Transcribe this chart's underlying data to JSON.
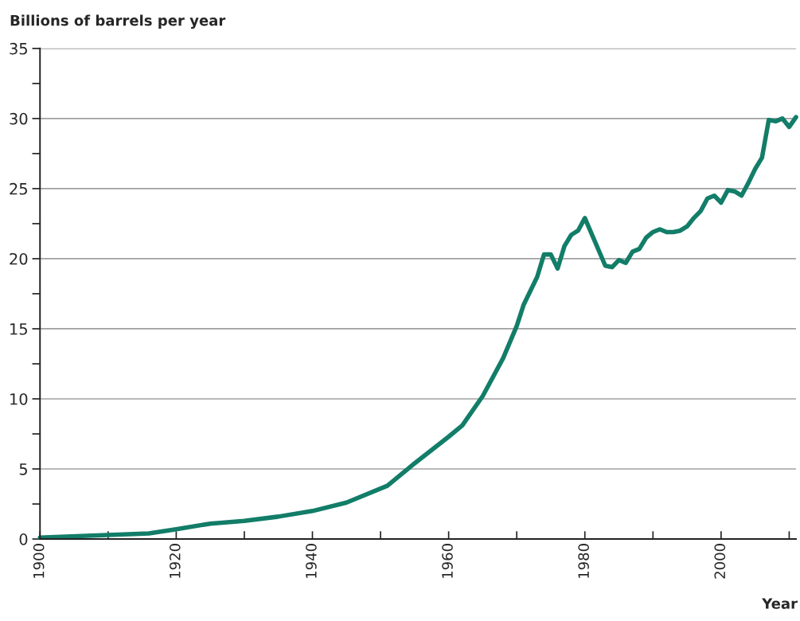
{
  "chart_data": {
    "type": "line",
    "ylabel": "Billions of barrels per year",
    "xlabel": "Year",
    "x": [
      1900,
      1916,
      1920,
      1925,
      1930,
      1935,
      1940,
      1945,
      1951,
      1955,
      1960,
      1962,
      1965,
      1968,
      1970,
      1971,
      1973,
      1974,
      1975,
      1976,
      1977,
      1978,
      1979,
      1980,
      1983,
      1984,
      1985,
      1986,
      1987,
      1988,
      1989,
      1990,
      1991,
      1992,
      1993,
      1994,
      1995,
      1996,
      1997,
      1998,
      1999,
      2000,
      2001,
      2002,
      2003,
      2004,
      2005,
      2006,
      2007,
      2008,
      2009,
      2010,
      2011
    ],
    "series": [
      {
        "color": "#127d68",
        "values": [
          0.1,
          0.4,
          0.7,
          1.1,
          1.3,
          1.6,
          2.0,
          2.6,
          3.8,
          5.4,
          7.3,
          8.1,
          10.2,
          12.9,
          15.2,
          16.7,
          18.7,
          20.3,
          20.3,
          19.3,
          20.9,
          21.7,
          22.0,
          22.9,
          19.5,
          19.4,
          19.9,
          19.7,
          20.5,
          20.7,
          21.5,
          21.9,
          22.1,
          21.9,
          21.9,
          22.0,
          22.3,
          22.9,
          23.4,
          24.3,
          24.5,
          24.0,
          24.9,
          24.8,
          24.5,
          25.4,
          26.4,
          27.2,
          29.9,
          29.8,
          30.0,
          29.4,
          30.1
        ]
      }
    ],
    "xlim": [
      1900,
      2011
    ],
    "ylim": [
      0,
      35
    ],
    "xticks": [
      1900,
      {
        "value": 1910,
        "label": null
      },
      1920,
      {
        "value": 1930,
        "label": null
      },
      1940,
      {
        "value": 1950,
        "label": null
      },
      1960,
      {
        "value": 1970,
        "label": null
      },
      1980,
      {
        "value": 1990,
        "label": null
      },
      2000,
      {
        "value": 2010,
        "label": null
      }
    ],
    "yticks": [
      0,
      {
        "value": 2.5,
        "label": null
      },
      5,
      {
        "value": 7.5,
        "label": null
      },
      10,
      {
        "value": 12.5,
        "label": null
      },
      15,
      {
        "value": 17.5,
        "label": null
      },
      20,
      {
        "value": 22.5,
        "label": null
      },
      25,
      {
        "value": 27.5,
        "label": null
      },
      30,
      {
        "value": 32.5,
        "label": null
      },
      35
    ],
    "grid": "y",
    "line_style": "solid",
    "marker": "none"
  }
}
